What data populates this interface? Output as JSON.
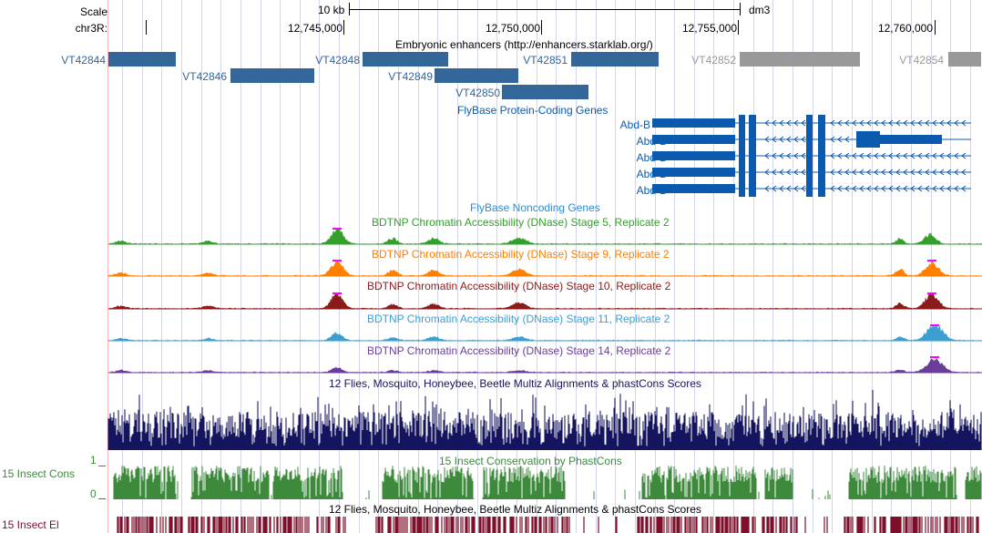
{
  "ruler": {
    "scale_label": "Scale",
    "chrom_label": "chr3R:",
    "scale_bar_text": "10 kb",
    "assembly": "dm3",
    "positions": [
      "12,745,000",
      "12,750,000",
      "12,755,000",
      "12,760,000"
    ]
  },
  "tracks": {
    "enhancers": {
      "title": "Embryonic enhancers (http://enhancers.starklab.org/)",
      "color": "#336699",
      "faded_color": "#999999",
      "items": [
        {
          "label": "VT42844",
          "faded": false
        },
        {
          "label": "VT42846",
          "faded": false
        },
        {
          "label": "VT42848",
          "faded": false
        },
        {
          "label": "VT42849",
          "faded": false
        },
        {
          "label": "VT42850",
          "faded": false
        },
        {
          "label": "VT42851",
          "faded": false
        },
        {
          "label": "VT42852",
          "faded": true
        },
        {
          "label": "VT42854",
          "faded": true
        }
      ]
    },
    "flybase_coding": {
      "title": "FlyBase Protein-Coding Genes",
      "color": "#0a5bb0",
      "genes": [
        "Abd-B",
        "Abd-B",
        "Abd-B",
        "Abd-B",
        "Abd-B"
      ]
    },
    "flybase_noncoding": {
      "title": "FlyBase Noncoding Genes",
      "color": "#2a8cd8"
    },
    "dnase": [
      {
        "title": "BDTNP Chromatin Accessibility (DNase) Stage 5, Replicate 2",
        "color": "#33a02c"
      },
      {
        "title": "BDTNP Chromatin Accessibility (DNase) Stage 9, Replicate 2",
        "color": "#ff7f00"
      },
      {
        "title": "BDTNP Chromatin Accessibility (DNase) Stage 10, Replicate 2",
        "color": "#8b1a1a"
      },
      {
        "title": "BDTNP Chromatin Accessibility (DNase) Stage 11, Replicate 2",
        "color": "#3b9fd1"
      },
      {
        "title": "BDTNP Chromatin Accessibility (DNase) Stage 14, Replicate 2",
        "color": "#6a3d9a"
      }
    ],
    "multiz": {
      "title": "12 Flies, Mosquito, Honeybee, Beetle Multiz Alignments & phastCons Scores",
      "color": "#14145f"
    },
    "phastcons": {
      "title": "15 Insect Conservation by PhastCons",
      "side_label": "15 Insect Cons",
      "y_max": "1",
      "y_min": "0",
      "color": "#3d8a3d"
    },
    "elements": {
      "title": "12 Flies, Mosquito, Honeybee, Beetle Multiz Alignments & phastCons Scores",
      "side_label": "15 Insect El",
      "color": "#7d0f2b"
    }
  }
}
